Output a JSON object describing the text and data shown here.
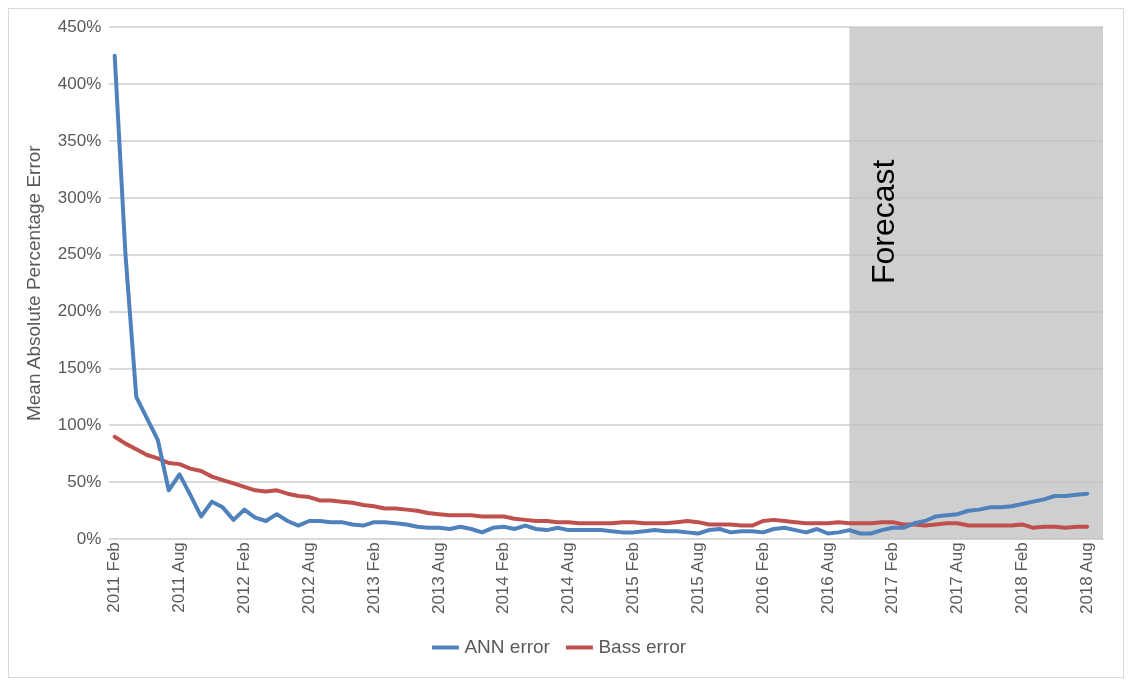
{
  "chart_data": {
    "type": "line",
    "ylabel": "Mean Absolute Percentage Error",
    "x": [
      "2011-02",
      "2011-03",
      "2011-04",
      "2011-05",
      "2011-06",
      "2011-07",
      "2011-08",
      "2011-09",
      "2011-10",
      "2011-11",
      "2011-12",
      "2012-01",
      "2012-02",
      "2012-03",
      "2012-04",
      "2012-05",
      "2012-06",
      "2012-07",
      "2012-08",
      "2012-09",
      "2012-10",
      "2012-11",
      "2012-12",
      "2013-01",
      "2013-02",
      "2013-03",
      "2013-04",
      "2013-05",
      "2013-06",
      "2013-07",
      "2013-08",
      "2013-09",
      "2013-10",
      "2013-11",
      "2013-12",
      "2014-01",
      "2014-02",
      "2014-03",
      "2014-04",
      "2014-05",
      "2014-06",
      "2014-07",
      "2014-08",
      "2014-09",
      "2014-10",
      "2014-11",
      "2014-12",
      "2015-01",
      "2015-02",
      "2015-03",
      "2015-04",
      "2015-05",
      "2015-06",
      "2015-07",
      "2015-08",
      "2015-09",
      "2015-10",
      "2015-11",
      "2015-12",
      "2016-01",
      "2016-02",
      "2016-03",
      "2016-04",
      "2016-05",
      "2016-06",
      "2016-07",
      "2016-08",
      "2016-09",
      "2016-10",
      "2016-11",
      "2016-12",
      "2017-01",
      "2017-02",
      "2017-03",
      "2017-04",
      "2017-05",
      "2017-06",
      "2017-07",
      "2017-08",
      "2017-09",
      "2017-10",
      "2017-11",
      "2017-12",
      "2018-01",
      "2018-02",
      "2018-03",
      "2018-04",
      "2018-05",
      "2018-06",
      "2018-07",
      "2018-08"
    ],
    "series": [
      {
        "name": "ANN error",
        "color": "#4f81bd",
        "values": [
          425,
          250,
          125,
          106,
          87,
          43,
          57,
          39,
          20,
          33,
          28,
          17,
          26,
          19,
          16,
          22,
          16,
          12,
          16,
          16,
          15,
          15,
          13,
          12,
          15,
          15,
          14,
          13,
          11,
          10,
          10,
          9,
          11,
          9,
          6,
          10,
          11,
          9,
          12,
          9,
          8,
          10,
          8,
          8,
          8,
          8,
          7,
          6,
          6,
          7,
          8,
          7,
          7,
          6,
          5,
          8,
          9,
          6,
          7,
          7,
          6,
          9,
          10,
          8,
          6,
          9,
          5,
          6,
          8,
          5,
          5,
          8,
          10,
          10,
          14,
          16,
          20,
          21,
          22,
          25,
          26,
          28,
          28,
          29,
          31,
          33,
          35,
          38,
          38,
          39,
          40
        ]
      },
      {
        "name": "Bass error",
        "color": "#c0504d",
        "values": [
          90,
          84,
          79,
          74,
          71,
          67,
          66,
          62,
          60,
          55,
          52,
          49,
          46,
          43,
          42,
          43,
          40,
          38,
          37,
          34,
          34,
          33,
          32,
          30,
          29,
          27,
          27,
          26,
          25,
          23,
          22,
          21,
          21,
          21,
          20,
          20,
          20,
          18,
          17,
          16,
          16,
          15,
          15,
          14,
          14,
          14,
          14,
          15,
          15,
          14,
          14,
          14,
          15,
          16,
          15,
          13,
          13,
          13,
          12,
          12,
          16,
          17,
          16,
          15,
          14,
          14,
          14,
          15,
          14,
          14,
          14,
          15,
          15,
          13,
          13,
          12,
          13,
          14,
          14,
          12,
          12,
          12,
          12,
          12,
          13,
          10,
          11,
          11,
          10,
          11,
          11
        ]
      }
    ],
    "xlim": [
      "2011-01-16",
      "2018-09-15"
    ],
    "xticks": [
      {
        "value": "2011-02",
        "label": "2011 Feb"
      },
      {
        "value": "2011-08",
        "label": "2011 Aug"
      },
      {
        "value": "2012-02",
        "label": "2012 Feb"
      },
      {
        "value": "2012-08",
        "label": "2012 Aug"
      },
      {
        "value": "2013-02",
        "label": "2013 Feb"
      },
      {
        "value": "2013-08",
        "label": "2013 Aug"
      },
      {
        "value": "2014-02",
        "label": "2014 Feb"
      },
      {
        "value": "2014-08",
        "label": "2014 Aug"
      },
      {
        "value": "2015-02",
        "label": "2015 Feb"
      },
      {
        "value": "2015-08",
        "label": "2015 Aug"
      },
      {
        "value": "2016-02",
        "label": "2016 Feb"
      },
      {
        "value": "2016-08",
        "label": "2016 Aug"
      },
      {
        "value": "2017-02",
        "label": "2017 Feb"
      },
      {
        "value": "2017-08",
        "label": "2017 Aug"
      },
      {
        "value": "2018-02",
        "label": "2018 Feb"
      },
      {
        "value": "2018-08",
        "label": "2018 Aug"
      }
    ],
    "ylim": [
      0,
      450
    ],
    "yticks": [
      {
        "value": 0,
        "label": "0%"
      },
      {
        "value": 50,
        "label": "50%"
      },
      {
        "value": 100,
        "label": "100%"
      },
      {
        "value": 150,
        "label": "150%"
      },
      {
        "value": 200,
        "label": "200%"
      },
      {
        "value": 250,
        "label": "250%"
      },
      {
        "value": 300,
        "label": "300%"
      },
      {
        "value": 350,
        "label": "350%"
      },
      {
        "value": 400,
        "label": "400%"
      },
      {
        "value": 450,
        "label": "450%"
      }
    ],
    "bands": [
      {
        "axis": "x",
        "from": "2016-10",
        "to": "2018-09-15",
        "label": "Forecast",
        "color": "#bfbfbf"
      }
    ],
    "grid": "y",
    "legend": "bottom",
    "marker": "none",
    "line_style": "solid"
  }
}
